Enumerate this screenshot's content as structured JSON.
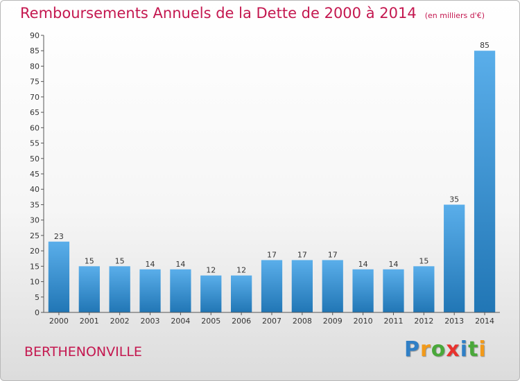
{
  "title": "Remboursements Annuels de la Dette de 2000 à 2014",
  "unit": "(en milliers d'€)",
  "commune": "BERTHENONVILLE",
  "logo": {
    "letters": [
      "P",
      "r",
      "o",
      "x",
      "i",
      "t",
      "i"
    ],
    "colors": [
      "#2f7fc6",
      "#f29a1a",
      "#49a83a",
      "#e8322e",
      "#2f7fc6",
      "#49a83a",
      "#f29a1a"
    ]
  },
  "colors": {
    "title": "#c4174f",
    "bar_top": "#5aaeea",
    "bar_bottom": "#2176b5"
  },
  "chart_data": {
    "type": "bar",
    "categories": [
      "2000",
      "2001",
      "2002",
      "2003",
      "2004",
      "2005",
      "2006",
      "2007",
      "2008",
      "2009",
      "2010",
      "2011",
      "2012",
      "2013",
      "2014"
    ],
    "values": [
      23,
      15,
      15,
      14,
      14,
      12,
      12,
      17,
      17,
      17,
      14,
      14,
      15,
      35,
      85
    ],
    "title": "Remboursements Annuels de la Dette de 2000 à 2014",
    "xlabel": "",
    "ylabel": "",
    "ylim": [
      0,
      90
    ],
    "yticks": [
      0,
      5,
      10,
      15,
      20,
      25,
      30,
      35,
      40,
      45,
      50,
      55,
      60,
      65,
      70,
      75,
      80,
      85,
      90
    ],
    "grid": false,
    "data_labels": true
  }
}
